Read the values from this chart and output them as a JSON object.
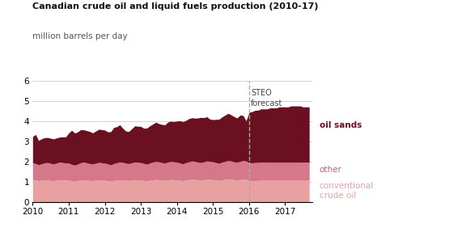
{
  "title": "Canadian crude oil and liquid fuels production (2010-17)",
  "ylabel": "million barrels per day",
  "colors": {
    "conventional": "#e8a0a0",
    "other": "#d4788a",
    "oil_sands": "#6b1020"
  },
  "forecast_x": 2016.0,
  "forecast_label": "STEO\nforecast",
  "ylim": [
    0,
    6
  ],
  "yticks": [
    0,
    1,
    2,
    3,
    4,
    5,
    6
  ],
  "xlim": [
    2010.0,
    2017.75
  ],
  "xticks": [
    2010,
    2011,
    2012,
    2013,
    2014,
    2015,
    2016,
    2017
  ],
  "legend_labels": [
    "oil sands",
    "other",
    "conventional\ncrude oil"
  ],
  "legend_colors": [
    "#6b1020",
    "#c06070",
    "#e8a0a0"
  ],
  "background_color": "#ffffff",
  "grid_color": "#cccccc",
  "months": [
    2010.0,
    2010.083,
    2010.167,
    2010.25,
    2010.333,
    2010.417,
    2010.5,
    2010.583,
    2010.667,
    2010.75,
    2010.833,
    2010.917,
    2011.0,
    2011.083,
    2011.167,
    2011.25,
    2011.333,
    2011.417,
    2011.5,
    2011.583,
    2011.667,
    2011.75,
    2011.833,
    2011.917,
    2012.0,
    2012.083,
    2012.167,
    2012.25,
    2012.333,
    2012.417,
    2012.5,
    2012.583,
    2012.667,
    2012.75,
    2012.833,
    2012.917,
    2013.0,
    2013.083,
    2013.167,
    2013.25,
    2013.333,
    2013.417,
    2013.5,
    2013.583,
    2013.667,
    2013.75,
    2013.833,
    2013.917,
    2014.0,
    2014.083,
    2014.167,
    2014.25,
    2014.333,
    2014.417,
    2014.5,
    2014.583,
    2014.667,
    2014.75,
    2014.833,
    2014.917,
    2015.0,
    2015.083,
    2015.167,
    2015.25,
    2015.333,
    2015.417,
    2015.5,
    2015.583,
    2015.667,
    2015.75,
    2015.833,
    2015.917,
    2016.0,
    2016.083,
    2016.167,
    2016.25,
    2016.333,
    2016.417,
    2016.5,
    2016.583,
    2016.667,
    2016.75,
    2016.833,
    2016.917,
    2017.0,
    2017.083,
    2017.167,
    2017.25,
    2017.333,
    2017.417,
    2017.5,
    2017.583,
    2017.667
  ],
  "conventional": [
    1.1,
    1.08,
    1.05,
    1.07,
    1.09,
    1.08,
    1.06,
    1.05,
    1.08,
    1.1,
    1.09,
    1.08,
    1.07,
    1.03,
    1.02,
    1.05,
    1.08,
    1.1,
    1.08,
    1.06,
    1.05,
    1.07,
    1.09,
    1.08,
    1.07,
    1.05,
    1.03,
    1.06,
    1.08,
    1.1,
    1.09,
    1.07,
    1.06,
    1.08,
    1.1,
    1.09,
    1.08,
    1.06,
    1.04,
    1.07,
    1.09,
    1.11,
    1.1,
    1.08,
    1.07,
    1.09,
    1.11,
    1.1,
    1.09,
    1.07,
    1.05,
    1.08,
    1.1,
    1.12,
    1.11,
    1.09,
    1.08,
    1.1,
    1.12,
    1.11,
    1.1,
    1.08,
    1.06,
    1.09,
    1.11,
    1.13,
    1.12,
    1.1,
    1.09,
    1.11,
    1.13,
    1.12,
    1.05,
    1.04,
    1.05,
    1.06,
    1.07,
    1.07,
    1.07,
    1.07,
    1.07,
    1.07,
    1.07,
    1.07,
    1.07,
    1.07,
    1.07,
    1.07,
    1.07,
    1.07,
    1.07,
    1.07,
    1.07
  ],
  "other": [
    0.85,
    0.82,
    0.8,
    0.82,
    0.85,
    0.87,
    0.85,
    0.83,
    0.85,
    0.87,
    0.86,
    0.85,
    0.85,
    0.83,
    0.8,
    0.83,
    0.86,
    0.88,
    0.86,
    0.84,
    0.83,
    0.85,
    0.87,
    0.86,
    0.85,
    0.83,
    0.81,
    0.84,
    0.86,
    0.88,
    0.87,
    0.85,
    0.84,
    0.86,
    0.88,
    0.87,
    0.87,
    0.85,
    0.83,
    0.86,
    0.88,
    0.9,
    0.89,
    0.87,
    0.86,
    0.88,
    0.9,
    0.89,
    0.88,
    0.86,
    0.84,
    0.87,
    0.89,
    0.91,
    0.9,
    0.88,
    0.87,
    0.89,
    0.91,
    0.9,
    0.89,
    0.87,
    0.85,
    0.88,
    0.9,
    0.92,
    0.91,
    0.89,
    0.88,
    0.9,
    0.92,
    0.91,
    0.9,
    0.9,
    0.9,
    0.9,
    0.9,
    0.9,
    0.9,
    0.9,
    0.9,
    0.9,
    0.9,
    0.9,
    0.9,
    0.9,
    0.9,
    0.9,
    0.9,
    0.9,
    0.9,
    0.9,
    0.9
  ],
  "oil_sands": [
    1.3,
    1.45,
    1.2,
    1.25,
    1.25,
    1.25,
    1.25,
    1.25,
    1.25,
    1.25,
    1.28,
    1.3,
    1.5,
    1.7,
    1.6,
    1.6,
    1.65,
    1.6,
    1.6,
    1.6,
    1.55,
    1.6,
    1.65,
    1.65,
    1.65,
    1.6,
    1.65,
    1.8,
    1.8,
    1.85,
    1.7,
    1.6,
    1.6,
    1.7,
    1.8,
    1.8,
    1.8,
    1.75,
    1.8,
    1.85,
    1.9,
    1.95,
    1.9,
    1.9,
    1.9,
    2.0,
    2.0,
    2.0,
    2.05,
    2.1,
    2.1,
    2.1,
    2.15,
    2.15,
    2.15,
    2.2,
    2.25,
    2.2,
    2.2,
    2.1,
    2.1,
    2.15,
    2.2,
    2.25,
    2.3,
    2.35,
    2.3,
    2.25,
    2.2,
    2.3,
    2.25,
    2.0,
    2.5,
    2.55,
    2.6,
    2.6,
    2.65,
    2.65,
    2.65,
    2.7,
    2.7,
    2.7,
    2.75,
    2.75,
    2.75,
    2.75,
    2.8,
    2.8,
    2.8,
    2.8,
    2.75,
    2.75,
    2.75
  ]
}
